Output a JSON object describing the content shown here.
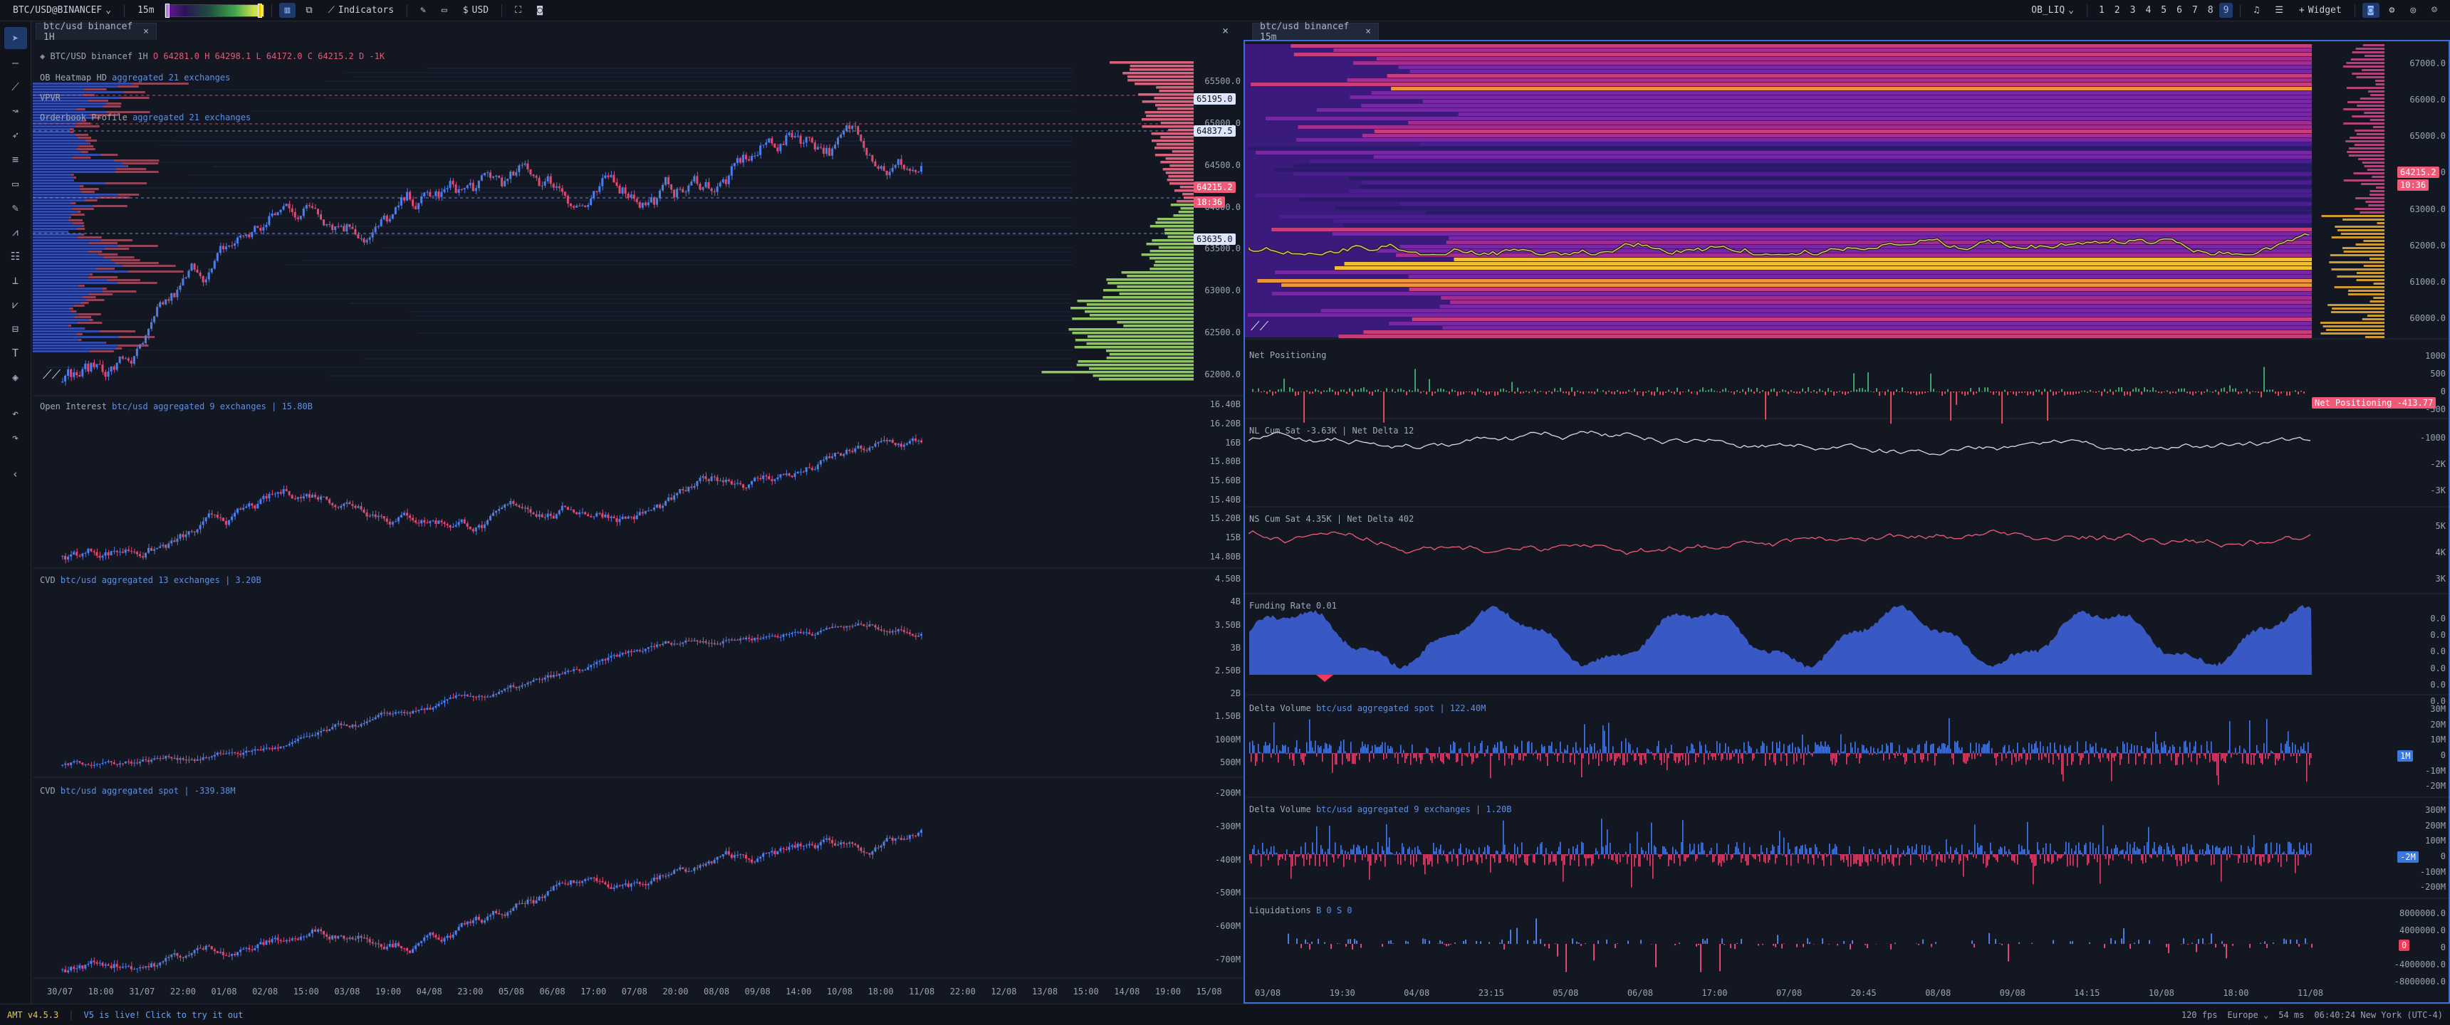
{
  "topbar": {
    "symbol": "BTC/USD@BINANCEF",
    "timeframe": "15m",
    "indicators_label": "Indicators",
    "currency": "USD",
    "ob_selector": "OB_LIQ",
    "layouts": [
      "1",
      "2",
      "3",
      "4",
      "5",
      "6",
      "7",
      "8",
      "9"
    ],
    "active_layout": "9",
    "widget_label": "Widget"
  },
  "tabs": {
    "left": "btc/usd binancef 1H",
    "right": "btc/usd binancef 15m"
  },
  "left": {
    "legend_symbol": "BTC/USD binancef 1H",
    "ohlc": "O 64281.0 H 64298.1 L 64172.0 C 64215.2 D -1K",
    "heatmap_label": "OB Heatmap HD",
    "heatmap_agg": "aggregated 21 exchanges",
    "vpvr": "VPVR",
    "obprofile_label": "Orderbook Profile",
    "obprofile_agg": "aggregated 21 exchanges",
    "price_ticks": [
      "65500.0",
      "65000.0",
      "64500.0",
      "64000.0",
      "63500.0",
      "63000.0",
      "62500.0",
      "62000.0"
    ],
    "price_badges": [
      {
        "text": "65195.0",
        "bg": "#dde6ff",
        "fg": "#111"
      },
      {
        "text": "64837.5",
        "bg": "#dde6ff",
        "fg": "#111"
      },
      {
        "text": "64215.2",
        "bg": "#ef5a78",
        "fg": "#fff"
      },
      {
        "text": "18:36",
        "bg": "#ef5a78",
        "fg": "#fff"
      },
      {
        "text": "63635.0",
        "bg": "#dde6ff",
        "fg": "#111"
      }
    ],
    "oi_label": "Open Interest",
    "oi_agg": "btc/usd aggregated 9 exchanges | 15.80B",
    "oi_ticks": [
      "16.40B",
      "16.20B",
      "16B",
      "15.80B",
      "15.60B",
      "15.40B",
      "15.20B",
      "15B",
      "14.80B"
    ],
    "cvd_label": "CVD",
    "cvd_agg": "btc/usd aggregated 13 exchanges | 3.20B",
    "cvd_ticks": [
      "4.50B",
      "4B",
      "3.50B",
      "3B",
      "2.50B",
      "2B",
      "1.50B",
      "1000M",
      "500M"
    ],
    "cvd2_label": "CVD",
    "cvd2_agg": "btc/usd aggregated spot | -339.38M",
    "cvd2_ticks": [
      "-200M",
      "-300M",
      "-400M",
      "-500M",
      "-600M",
      "-700M"
    ],
    "x_ticks": [
      "30/07",
      "18:00",
      "31/07",
      "22:00",
      "01/08",
      "02/08",
      "15:00",
      "03/08",
      "19:00",
      "04/08",
      "23:00",
      "05/08",
      "06/08",
      "17:00",
      "07/08",
      "20:00",
      "08/08",
      "09/08",
      "14:00",
      "10/08",
      "18:00",
      "11/08",
      "22:00",
      "12/08",
      "13/08",
      "15:00",
      "14/08",
      "19:00",
      "15/08"
    ]
  },
  "right": {
    "price_ticks": [
      "67000.0",
      "66000.0",
      "65000.0",
      "64000.0",
      "63000.0",
      "62000.0",
      "61000.0",
      "60000.0"
    ],
    "price_badges": [
      {
        "text": "64215.2",
        "bg": "#ef5a78",
        "fg": "#fff"
      },
      {
        "text": "10:36",
        "bg": "#ef5a78",
        "fg": "#fff"
      }
    ],
    "net_pos_label": "Net Positioning",
    "net_pos_ticks": [
      "1000",
      "500",
      "0",
      "-500"
    ],
    "net_pos_badge": "Net Positioning  -413.77",
    "nl_label": "NL Cum Sat -3.63K | Net Delta 12",
    "nl_ticks": [
      "-1000",
      "-2K",
      "-3K"
    ],
    "ns_label": "NS Cum Sat 4.35K | Net Delta 402",
    "ns_ticks": [
      "5K",
      "4K",
      "3K"
    ],
    "funding_label": "Funding Rate 0.01",
    "funding_ticks": [
      "0.0",
      "0.0",
      "0.0",
      "0.0",
      "0.0",
      "0.0"
    ],
    "dv_spot_label": "Delta Volume",
    "dv_spot_agg": "btc/usd aggregated spot | 122.40M",
    "dv_spot_ticks": [
      "30M",
      "20M",
      "10M",
      "0",
      "-10M",
      "-20M"
    ],
    "dv_spot_badge": "1M",
    "dv_agg_label": "Delta Volume",
    "dv_agg_agg": "btc/usd aggregated 9 exchanges | 1.20B",
    "dv_agg_ticks": [
      "300M",
      "200M",
      "100M",
      "0",
      "-100M",
      "-200M"
    ],
    "dv_agg_badge": "-2M",
    "liq_label": "Liquidations",
    "liq_values": "B 0 S 0",
    "liq_ticks": [
      "8000000.0",
      "4000000.0",
      "0",
      "-4000000.0",
      "-8000000.0"
    ],
    "liq_badge": "0",
    "x_ticks": [
      "03/08",
      "19:30",
      "04/08",
      "23:15",
      "05/08",
      "06/08",
      "17:00",
      "07/08",
      "20:45",
      "08/08",
      "09/08",
      "14:15",
      "10/08",
      "18:00",
      "11/08"
    ]
  },
  "status": {
    "version": "AMT v4.5.3",
    "notice": "V5 is live! Click to try it out",
    "fps": "120 fps",
    "region": "Europe",
    "latency": "54 ms",
    "clock": "06:40:24 New York (UTC-4)"
  }
}
